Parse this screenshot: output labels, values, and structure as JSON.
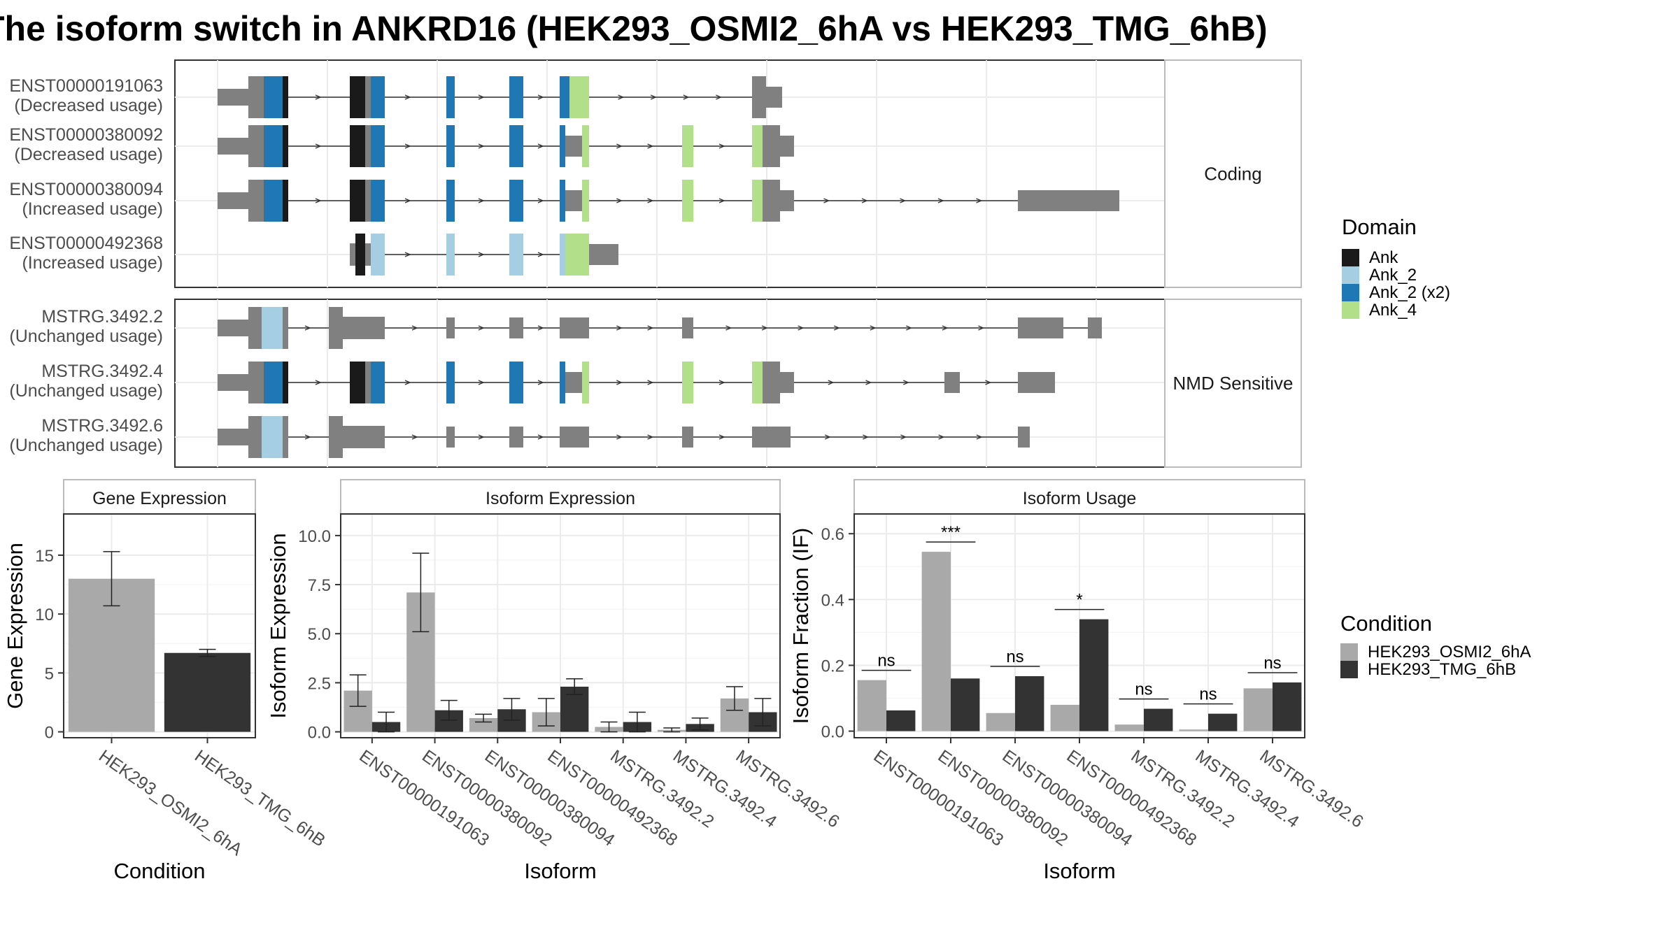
{
  "title": "The isoform switch in ANKRD16 (HEK293_OSMI2_6hA vs HEK293_TMG_6hB)",
  "colors": {
    "exon": "#808080",
    "domains": {
      "Ank": "#1a1a1a",
      "Ank_2": "#a6cee3",
      "Ank_2 (x2)": "#1f78b4",
      "Ank_4": "#b2df8a"
    },
    "conditions": {
      "HEK293_OSMI2_6hA": "#a9a9a9",
      "HEK293_TMG_6hB": "#333333"
    }
  },
  "structure": {
    "groups": [
      {
        "label": "Coding",
        "transcripts": [
          {
            "id": "ENST00000191063",
            "usage": "(Decreased usage)",
            "exons": [
              "A",
              "B",
              "C",
              "D",
              "E",
              "F4a",
              "J"
            ],
            "domains": [
              "A1",
              "B1",
              "C1",
              "D1",
              "E1",
              "F1"
            ]
          },
          {
            "id": "ENST00000380092",
            "usage": "(Decreased usage)",
            "exons": [
              "A",
              "B",
              "C",
              "D",
              "E",
              "F",
              "G",
              "H",
              "I"
            ],
            "domains": [
              "A1",
              "B1",
              "C1",
              "D1",
              "E1",
              "F2",
              "G1",
              "H1"
            ]
          },
          {
            "id": "ENST00000380094",
            "usage": "(Increased usage)",
            "exons": [
              "A",
              "B",
              "C",
              "D",
              "E",
              "F",
              "G",
              "H",
              "I2",
              "L"
            ],
            "domains": [
              "A1",
              "B1",
              "C1",
              "D1",
              "E1",
              "F2",
              "G1",
              "H1"
            ]
          },
          {
            "id": "ENST00000492368",
            "usage": "(Increased usage)",
            "exons": [
              "B4",
              "C",
              "D",
              "E",
              "F4b",
              "F4c"
            ],
            "domains": [
              "B4",
              "C2",
              "D2",
              "E2",
              "F3"
            ]
          }
        ]
      },
      {
        "label": "NMD Sensitive",
        "transcripts": [
          {
            "id": "MSTRG.3492.2",
            "usage": "(Unchanged usage)",
            "exons": [
              "A",
              "B5",
              "C",
              "D",
              "E5",
              "G5",
              "L5",
              "M5"
            ],
            "domains": [
              "A2"
            ]
          },
          {
            "id": "MSTRG.3492.4",
            "usage": "(Unchanged usage)",
            "exons": [
              "A",
              "B",
              "C",
              "D",
              "E",
              "F",
              "G",
              "H",
              "I",
              "K",
              "L6"
            ],
            "domains": [
              "A1",
              "B1",
              "C1",
              "D1",
              "E1",
              "F2",
              "G1",
              "H1"
            ]
          },
          {
            "id": "MSTRG.3492.6",
            "usage": "(Unchanged usage)",
            "exons": [
              "A",
              "B5",
              "C",
              "D",
              "E5",
              "G5",
              "H7",
              "L7"
            ],
            "domains": [
              "A2"
            ]
          }
        ]
      }
    ]
  },
  "legends": {
    "domain": {
      "title": "Domain",
      "entries": [
        "Ank",
        "Ank_2",
        "Ank_2 (x2)",
        "Ank_4"
      ]
    },
    "condition": {
      "title": "Condition",
      "entries": [
        "HEK293_OSMI2_6hA",
        "HEK293_TMG_6hB"
      ]
    }
  },
  "chart_data": [
    {
      "type": "bar",
      "title": "Gene Expression",
      "xlabel": "Condition",
      "ylabel": "Gene Expression",
      "categories": [
        "HEK293_OSMI2_6hA",
        "HEK293_TMG_6hB"
      ],
      "values": [
        13.0,
        6.7
      ],
      "error_low": [
        10.7,
        6.4
      ],
      "error_high": [
        15.3,
        7.0
      ],
      "ylim": [
        -0.5,
        18.5
      ],
      "yticks": [
        0,
        5,
        10,
        15
      ]
    },
    {
      "type": "bar",
      "title": "Isoform Expression",
      "xlabel": "Isoform",
      "ylabel": "Isoform Expression",
      "categories": [
        "ENST00000191063",
        "ENST00000380092",
        "ENST00000380094",
        "ENST00000492368",
        "MSTRG.3492.2",
        "MSTRG.3492.4",
        "MSTRG.3492.6"
      ],
      "series": [
        {
          "name": "HEK293_OSMI2_6hA",
          "values": [
            2.1,
            7.1,
            0.7,
            1.0,
            0.25,
            0.1,
            1.7
          ],
          "error_low": [
            1.3,
            5.1,
            0.5,
            0.3,
            0.0,
            0.0,
            1.1
          ],
          "error_high": [
            2.9,
            9.1,
            0.9,
            1.7,
            0.5,
            0.2,
            2.3
          ]
        },
        {
          "name": "HEK293_TMG_6hB",
          "values": [
            0.5,
            1.1,
            1.15,
            2.3,
            0.5,
            0.4,
            1.0
          ],
          "error_low": [
            0.0,
            0.6,
            0.6,
            1.9,
            0.0,
            0.1,
            0.3
          ],
          "error_high": [
            1.0,
            1.6,
            1.7,
            2.7,
            1.0,
            0.7,
            1.7
          ]
        }
      ],
      "ylim": [
        -0.3,
        11.1
      ],
      "yticks": [
        0.0,
        2.5,
        5.0,
        7.5,
        10.0
      ],
      "ytick_labels": [
        "0.0",
        "2.5",
        "5.0",
        "7.5",
        "10.0"
      ]
    },
    {
      "type": "bar",
      "title": "Isoform Usage",
      "xlabel": "Isoform",
      "ylabel": "Isoform Fraction (IF)",
      "categories": [
        "ENST00000191063",
        "ENST00000380092",
        "ENST00000380094",
        "ENST00000492368",
        "MSTRG.3492.2",
        "MSTRG.3492.4",
        "MSTRG.3492.6"
      ],
      "series": [
        {
          "name": "HEK293_OSMI2_6hA",
          "values": [
            0.155,
            0.545,
            0.055,
            0.08,
            0.02,
            0.005,
            0.13
          ]
        },
        {
          "name": "HEK293_TMG_6hB",
          "values": [
            0.063,
            0.16,
            0.167,
            0.34,
            0.068,
            0.053,
            0.148
          ]
        }
      ],
      "significance": [
        "ns",
        "***",
        "ns",
        "*",
        "ns",
        "ns",
        "ns"
      ],
      "ylim": [
        -0.02,
        0.66
      ],
      "yticks": [
        0.0,
        0.2,
        0.4,
        0.6
      ],
      "ytick_labels": [
        "0.0",
        "0.2",
        "0.4",
        "0.6"
      ]
    }
  ]
}
